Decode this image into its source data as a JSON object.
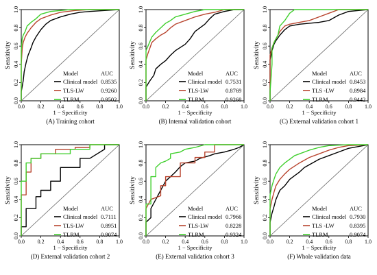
{
  "legend_headers": {
    "model": "Model",
    "auc": "AUC"
  },
  "colors": {
    "clinical": "#000000",
    "tlslw": "#b8442e",
    "tlrm": "#3fcf2c",
    "diag": "#666666",
    "rule": "#777777"
  },
  "chart_data": [
    {
      "type": "line",
      "caption": "(A) Training cohort",
      "xlabel": "1 − Specificity",
      "ylabel": "Sensitivity",
      "xlim": [
        0,
        1
      ],
      "ylim": [
        0,
        1
      ],
      "xticks": [
        "0.0",
        "0.2",
        "0.4",
        "0.6",
        "0.8",
        "1.0"
      ],
      "yticks": [
        "0.0",
        "0.2",
        "0.4",
        "0.6",
        "0.8",
        "1.0"
      ],
      "legend_position": "bottom-right",
      "series": [
        {
          "name": "Clinical model",
          "auc": "0.8535",
          "x": [
            0,
            0,
            0.02,
            0.03,
            0.05,
            0.07,
            0.1,
            0.12,
            0.15,
            0.2,
            0.25,
            0.3,
            0.4,
            0.5,
            0.6,
            0.7,
            0.85,
            1
          ],
          "y": [
            0,
            0.1,
            0.22,
            0.32,
            0.42,
            0.5,
            0.58,
            0.64,
            0.7,
            0.78,
            0.84,
            0.88,
            0.92,
            0.95,
            0.97,
            0.98,
            0.99,
            1
          ]
        },
        {
          "name": "TLS-LW",
          "auc": "0.9260",
          "x": [
            0,
            0,
            0.01,
            0.02,
            0.04,
            0.06,
            0.1,
            0.15,
            0.2,
            0.3,
            0.4,
            0.55,
            0.7,
            1
          ],
          "y": [
            0,
            0.4,
            0.58,
            0.64,
            0.7,
            0.74,
            0.8,
            0.86,
            0.9,
            0.94,
            0.97,
            0.99,
            1,
            1
          ]
        },
        {
          "name": "TLRM",
          "auc": "0.9502",
          "x": [
            0,
            0,
            0.01,
            0.02,
            0.04,
            0.06,
            0.1,
            0.15,
            0.2,
            0.3,
            0.4,
            0.5,
            1
          ],
          "y": [
            0,
            0.55,
            0.68,
            0.72,
            0.76,
            0.82,
            0.86,
            0.9,
            0.95,
            0.98,
            0.99,
            1,
            1
          ]
        }
      ]
    },
    {
      "type": "line",
      "caption": "(B) Internal validation cohort",
      "xlabel": "1 − Specificity",
      "ylabel": "Sensitivity",
      "xlim": [
        0,
        1
      ],
      "ylim": [
        0,
        1
      ],
      "xticks": [
        "0.0",
        "0.2",
        "0.4",
        "0.6",
        "0.8",
        "1.0"
      ],
      "yticks": [
        "0.0",
        "0.2",
        "0.4",
        "0.6",
        "0.8",
        "1.0"
      ],
      "legend_position": "bottom-right",
      "series": [
        {
          "name": "Clinical model",
          "auc": "0.7531",
          "x": [
            0,
            0,
            0.04,
            0.08,
            0.1,
            0.15,
            0.2,
            0.25,
            0.3,
            0.4,
            0.45,
            0.5,
            0.6,
            0.65,
            0.7,
            0.8,
            0.9,
            1
          ],
          "y": [
            0,
            0.15,
            0.22,
            0.28,
            0.35,
            0.4,
            0.44,
            0.5,
            0.55,
            0.62,
            0.68,
            0.76,
            0.84,
            0.9,
            0.95,
            0.98,
            1,
            1
          ]
        },
        {
          "name": "TLS-LW",
          "auc": "0.8769",
          "x": [
            0,
            0,
            0.02,
            0.04,
            0.06,
            0.1,
            0.15,
            0.2,
            0.25,
            0.3,
            0.4,
            0.5,
            0.6,
            0.7,
            0.8,
            1
          ],
          "y": [
            0,
            0.45,
            0.52,
            0.58,
            0.64,
            0.68,
            0.72,
            0.75,
            0.8,
            0.84,
            0.88,
            0.92,
            0.95,
            0.97,
            1,
            1
          ]
        },
        {
          "name": "TLRM",
          "auc": "0.9268",
          "x": [
            0,
            0,
            0.02,
            0.04,
            0.06,
            0.1,
            0.15,
            0.2,
            0.25,
            0.3,
            0.4,
            0.5,
            0.6,
            0.7,
            1
          ],
          "y": [
            0,
            0.55,
            0.6,
            0.65,
            0.7,
            0.75,
            0.8,
            0.85,
            0.88,
            0.92,
            0.95,
            0.98,
            1,
            1,
            1
          ]
        }
      ]
    },
    {
      "type": "line",
      "caption": "(C) External validation cohort 1",
      "xlabel": "1 − Specificity",
      "ylabel": "Sensitivity",
      "xlim": [
        0,
        1
      ],
      "ylim": [
        0,
        1
      ],
      "xticks": [
        "0.0",
        "0.2",
        "0.4",
        "0.6",
        "0.8",
        "1.0"
      ],
      "yticks": [
        "0.0",
        "0.2",
        "0.4",
        "0.6",
        "0.8",
        "1.0"
      ],
      "legend_position": "bottom-right",
      "series": [
        {
          "name": "Clinical model",
          "auc": "0.8453",
          "x": [
            0,
            0,
            0.02,
            0.04,
            0.06,
            0.1,
            0.15,
            0.2,
            0.3,
            0.4,
            0.5,
            0.6,
            0.7,
            0.8,
            1
          ],
          "y": [
            0,
            0.45,
            0.55,
            0.62,
            0.66,
            0.72,
            0.78,
            0.82,
            0.84,
            0.85,
            0.86,
            0.88,
            0.94,
            0.98,
            1
          ]
        },
        {
          "name": "TLS -LW",
          "auc": "0.8984",
          "x": [
            0,
            0,
            0.02,
            0.04,
            0.08,
            0.1,
            0.15,
            0.2,
            0.3,
            0.4,
            0.5,
            0.6,
            0.7,
            1
          ],
          "y": [
            0,
            0.5,
            0.58,
            0.64,
            0.72,
            0.76,
            0.82,
            0.84,
            0.86,
            0.88,
            0.92,
            0.96,
            1,
            1
          ]
        },
        {
          "name": "TLRM",
          "auc": "0.9442",
          "x": [
            0,
            0,
            0.02,
            0.02,
            0.05,
            0.08,
            0.1,
            0.15,
            0.2,
            0.25,
            0.4,
            1
          ],
          "y": [
            0,
            0.1,
            0.4,
            0.58,
            0.66,
            0.72,
            0.82,
            0.88,
            0.96,
            1,
            1,
            1
          ]
        }
      ]
    },
    {
      "type": "line",
      "caption": "(D) External validation cohort 2",
      "xlabel": "1 − Specificity",
      "ylabel": "Sensitivity",
      "xlim": [
        0,
        1
      ],
      "ylim": [
        0,
        1
      ],
      "xticks": [
        "0.0",
        "0.2",
        "0.4",
        "0.6",
        "0.8",
        "1.0"
      ],
      "yticks": [
        "0.0",
        "0.2",
        "0.4",
        "0.6",
        "0.8",
        "1.0"
      ],
      "legend_position": "bottom-right",
      "series": [
        {
          "name": "Clinical model",
          "auc": "0.7111",
          "x": [
            0,
            0,
            0.05,
            0.05,
            0.15,
            0.15,
            0.2,
            0.2,
            0.3,
            0.3,
            0.4,
            0.4,
            0.6,
            0.6,
            0.7,
            0.85,
            0.85,
            1
          ],
          "y": [
            0,
            0.1,
            0.1,
            0.3,
            0.3,
            0.43,
            0.43,
            0.5,
            0.5,
            0.6,
            0.6,
            0.75,
            0.75,
            0.85,
            0.85,
            0.95,
            1,
            1
          ]
        },
        {
          "name": "TLS-LW",
          "auc": "0.8951",
          "x": [
            0,
            0,
            0.05,
            0.05,
            0.1,
            0.1,
            0.2,
            0.2,
            0.35,
            0.35,
            0.55,
            0.55,
            0.7,
            0.7,
            1
          ],
          "y": [
            0,
            0.45,
            0.45,
            0.7,
            0.7,
            0.85,
            0.85,
            0.9,
            0.9,
            0.95,
            0.95,
            0.97,
            0.97,
            1,
            1
          ]
        },
        {
          "name": "TLRM",
          "auc": "0.9074",
          "x": [
            0,
            0,
            0.05,
            0.05,
            0.1,
            0.1,
            0.2,
            0.2,
            0.5,
            0.5,
            0.7,
            0.7,
            1
          ],
          "y": [
            0,
            0.6,
            0.6,
            0.8,
            0.8,
            0.85,
            0.85,
            0.9,
            0.9,
            0.95,
            0.95,
            1,
            1
          ]
        }
      ]
    },
    {
      "type": "line",
      "caption": "(E) External validation cohort 3",
      "xlabel": "1 − Specificity",
      "ylabel": "Sensitivity",
      "xlim": [
        0,
        1
      ],
      "ylim": [
        0,
        1
      ],
      "xticks": [
        "0.0",
        "0.2",
        "0.4",
        "0.6",
        "0.8",
        "1.0"
      ],
      "yticks": [
        "0.0",
        "0.2",
        "0.4",
        "0.6",
        "0.8",
        "1.0"
      ],
      "legend_position": "bottom-right",
      "series": [
        {
          "name": "Clinical model",
          "auc": "0.7966",
          "x": [
            0,
            0,
            0.05,
            0.05,
            0.1,
            0.15,
            0.2,
            0.25,
            0.3,
            0.35,
            0.4,
            0.5,
            0.55,
            0.65,
            0.7,
            0.8,
            0.9,
            0.95,
            1
          ],
          "y": [
            0,
            0.15,
            0.2,
            0.3,
            0.4,
            0.5,
            0.6,
            0.65,
            0.7,
            0.76,
            0.8,
            0.82,
            0.85,
            0.88,
            0.9,
            0.92,
            0.95,
            0.97,
            1
          ]
        },
        {
          "name": "TLS-LW",
          "auc": "0.8228",
          "x": [
            0,
            0,
            0.05,
            0.1,
            0.15,
            0.15,
            0.2,
            0.2,
            0.35,
            0.35,
            0.5,
            0.5,
            0.6,
            0.6,
            0.7,
            0.7,
            1
          ],
          "y": [
            0,
            0.3,
            0.4,
            0.42,
            0.44,
            0.55,
            0.55,
            0.65,
            0.65,
            0.8,
            0.8,
            0.86,
            0.86,
            0.92,
            0.92,
            1,
            1
          ]
        },
        {
          "name": "TLRM",
          "auc": "0.9324",
          "x": [
            0,
            0,
            0.05,
            0.05,
            0.1,
            0.1,
            0.15,
            0.2,
            0.25,
            0.25,
            0.35,
            0.4,
            0.5,
            0.6,
            0.7,
            1
          ],
          "y": [
            0,
            0.35,
            0.35,
            0.65,
            0.65,
            0.75,
            0.8,
            0.82,
            0.85,
            0.9,
            0.92,
            0.95,
            0.97,
            1,
            1,
            1
          ]
        }
      ]
    },
    {
      "type": "line",
      "caption": "(F)  Whole validation data",
      "xlabel": "1 − Specificity",
      "ylabel": "Sensitivity",
      "xlim": [
        0,
        1
      ],
      "ylim": [
        0,
        1
      ],
      "xticks": [
        "0.0",
        "0.2",
        "0.4",
        "0.6",
        "0.8",
        "1.0"
      ],
      "yticks": [
        "0.0",
        "0.2",
        "0.4",
        "0.6",
        "0.8",
        "1.0"
      ],
      "legend_position": "bottom-right",
      "series": [
        {
          "name": "Clinical model",
          "auc": "0.7930",
          "x": [
            0,
            0,
            0.02,
            0.04,
            0.06,
            0.08,
            0.1,
            0.15,
            0.2,
            0.25,
            0.3,
            0.35,
            0.4,
            0.5,
            0.6,
            0.7,
            0.8,
            0.9,
            1
          ],
          "y": [
            0,
            0.15,
            0.25,
            0.32,
            0.4,
            0.45,
            0.5,
            0.55,
            0.62,
            0.66,
            0.7,
            0.75,
            0.78,
            0.84,
            0.88,
            0.92,
            0.96,
            0.98,
            1
          ]
        },
        {
          "name": "TLS -LW",
          "auc": "0.8395",
          "x": [
            0,
            0,
            0.02,
            0.04,
            0.06,
            0.1,
            0.15,
            0.2,
            0.3,
            0.4,
            0.5,
            0.6,
            0.7,
            0.8,
            1
          ],
          "y": [
            0,
            0.3,
            0.4,
            0.48,
            0.55,
            0.62,
            0.68,
            0.73,
            0.8,
            0.86,
            0.9,
            0.94,
            0.97,
            0.99,
            1
          ]
        },
        {
          "name": "TLRM",
          "auc": "0.9074",
          "x": [
            0,
            0,
            0.02,
            0.04,
            0.06,
            0.1,
            0.15,
            0.2,
            0.25,
            0.3,
            0.4,
            0.5,
            0.6,
            0.8,
            1
          ],
          "y": [
            0,
            0.45,
            0.55,
            0.62,
            0.68,
            0.75,
            0.8,
            0.84,
            0.88,
            0.9,
            0.94,
            0.97,
            0.99,
            1,
            1
          ]
        }
      ]
    }
  ]
}
